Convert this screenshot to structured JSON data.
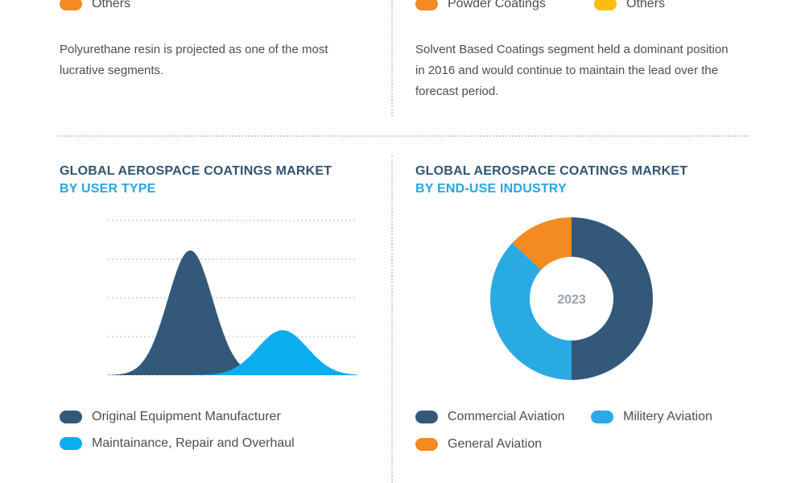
{
  "colors": {
    "navy": "#34587a",
    "sky": "#2aaae3",
    "bright_blue": "#0aaef0",
    "orange": "#f48a22",
    "yellow": "#fbbd12",
    "heading_navy": "#2f5572",
    "heading_blue": "#27a6e0"
  },
  "top_left": {
    "legend": [
      {
        "label": "Others",
        "color": "#f48a22"
      }
    ],
    "note": "Polyurethane resin is projected as one of the most lucrative segments."
  },
  "top_right": {
    "legend": [
      {
        "label": "Powder Coatings",
        "color": "#f48a22"
      },
      {
        "label": "Others",
        "color": "#fbbd12"
      }
    ],
    "note": "Solvent Based Coatings segment held a dominant position in 2016 and would continue to maintain the lead over the forecast period."
  },
  "user_type": {
    "title_line1": "GLOBAL AEROSPACE COATINGS MARKET",
    "title_line2": "BY USER TYPE",
    "legend": [
      {
        "label": "Original Equipment Manufacturer",
        "color": "#34587a",
        "icon": "pill-icon"
      },
      {
        "label": "Maintainance, Repair and Overhaul",
        "color": "#0aaef0",
        "icon": "pill-icon"
      }
    ]
  },
  "end_use": {
    "title_line1": "GLOBAL AEROSPACE COATINGS MARKET",
    "title_line2": "BY END-USE INDUSTRY",
    "center_label": "2023",
    "legend": [
      {
        "label": "Commercial Aviation",
        "color": "#34587a",
        "icon": "pill-icon"
      },
      {
        "label": "Militery Aviation",
        "color": "#2aaae3",
        "icon": "pill-icon"
      },
      {
        "label": "General Aviation",
        "color": "#f48a22",
        "icon": "pill-icon"
      }
    ]
  },
  "chart_data": [
    {
      "type": "area",
      "title": "GLOBAL AEROSPACE COATINGS MARKET BY USER TYPE",
      "grid": true,
      "gridlines": 5,
      "series": [
        {
          "name": "Original Equipment Manufacturer",
          "shape": "bell",
          "peak": 1.0,
          "center": 0.33,
          "spread": 0.09,
          "color": "#34587a"
        },
        {
          "name": "Maintainance, Repair and Overhaul",
          "shape": "bell",
          "peak": 0.36,
          "center": 0.7,
          "spread": 0.1,
          "color": "#0aaef0"
        }
      ]
    },
    {
      "type": "pie",
      "donut": true,
      "title": "GLOBAL AEROSPACE COATINGS MARKET BY END-USE INDUSTRY",
      "center_label": "2023",
      "series": [
        {
          "name": "Commercial Aviation",
          "value": 50,
          "color": "#34587a"
        },
        {
          "name": "Militery Aviation",
          "value": 37,
          "color": "#2aaae3"
        },
        {
          "name": "General Aviation",
          "value": 13,
          "color": "#f48a22"
        }
      ]
    }
  ]
}
